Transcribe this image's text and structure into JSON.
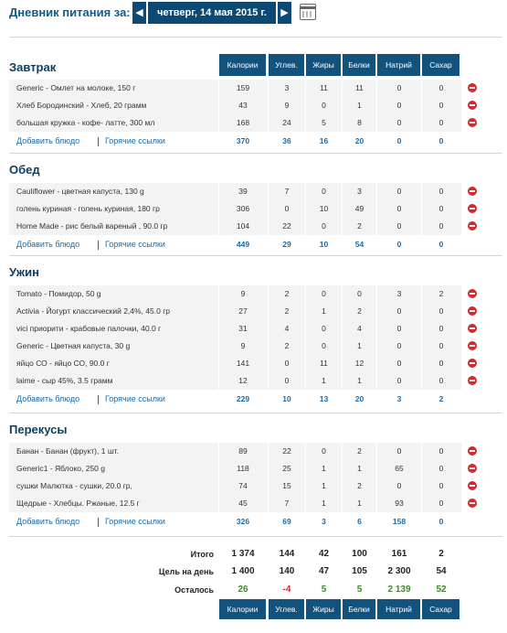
{
  "header": {
    "label": "Дневник питания за:",
    "date": "четверг, 14 мая 2015 г.",
    "prev_icon": "chevron-left-icon",
    "next_icon": "chevron-right-icon",
    "calendar_icon": "calendar-icon"
  },
  "columns": [
    "Калории",
    "Углев.",
    "Жиры",
    "Белки",
    "Натрий",
    "Сахар"
  ],
  "links": {
    "add": "Добавить блюдо",
    "hot": "Горячие ссылки"
  },
  "meals": [
    {
      "title": "Завтрак",
      "items": [
        {
          "name": "Generic - Омлет на молоке, 150 г",
          "values": [
            "159",
            "3",
            "11",
            "11",
            "0",
            "0"
          ]
        },
        {
          "name": "Хлеб Бородинский - Хлеб, 20 грамм",
          "values": [
            "43",
            "9",
            "0",
            "1",
            "0",
            "0"
          ]
        },
        {
          "name": "большая кружка - кофе- латте, 300 мл",
          "values": [
            "168",
            "24",
            "5",
            "8",
            "0",
            "0"
          ]
        }
      ],
      "totals": [
        "370",
        "36",
        "16",
        "20",
        "0",
        "0"
      ]
    },
    {
      "title": "Обед",
      "items": [
        {
          "name": "Cauliflower - цветная капуста, 130 g",
          "values": [
            "39",
            "7",
            "0",
            "3",
            "0",
            "0"
          ]
        },
        {
          "name": "голень куриная - голень куриная, 180 гр",
          "values": [
            "306",
            "0",
            "10",
            "49",
            "0",
            "0"
          ]
        },
        {
          "name": "Home Made - рис белый вареный , 90.0 гр",
          "values": [
            "104",
            "22",
            "0",
            "2",
            "0",
            "0"
          ]
        }
      ],
      "totals": [
        "449",
        "29",
        "10",
        "54",
        "0",
        "0"
      ]
    },
    {
      "title": "Ужин",
      "items": [
        {
          "name": "Tomato - Помидор, 50 g",
          "values": [
            "9",
            "2",
            "0",
            "0",
            "3",
            "2"
          ]
        },
        {
          "name": "Activia - Йогурт классический 2,4%, 45.0 гр",
          "values": [
            "27",
            "2",
            "1",
            "2",
            "0",
            "0"
          ]
        },
        {
          "name": "vici приорити - крабовые палочки, 40.0 г",
          "values": [
            "31",
            "4",
            "0",
            "4",
            "0",
            "0"
          ]
        },
        {
          "name": "Generic - Цветная капуста, 30 g",
          "values": [
            "9",
            "2",
            "0",
            "1",
            "0",
            "0"
          ]
        },
        {
          "name": "яйцо СО - яйцо СО, 90.0 г",
          "values": [
            "141",
            "0",
            "11",
            "12",
            "0",
            "0"
          ]
        },
        {
          "name": "laime - сыр 45%, 3.5 грамм",
          "values": [
            "12",
            "0",
            "1",
            "1",
            "0",
            "0"
          ]
        }
      ],
      "totals": [
        "229",
        "10",
        "13",
        "20",
        "3",
        "2"
      ]
    },
    {
      "title": "Перекусы",
      "items": [
        {
          "name": "Банан - Банан (фрукт), 1 шт.",
          "values": [
            "89",
            "22",
            "0",
            "2",
            "0",
            "0"
          ]
        },
        {
          "name": "Generic1 - Яблоко, 250 g",
          "values": [
            "118",
            "25",
            "1",
            "1",
            "65",
            "0"
          ]
        },
        {
          "name": "сушки Малютка - сушки, 20.0 гр,",
          "values": [
            "74",
            "15",
            "1",
            "2",
            "0",
            "0"
          ]
        },
        {
          "name": "Щедрые - Хлебцы. Ржаные, 12.5 г",
          "values": [
            "45",
            "7",
            "1",
            "1",
            "93",
            "0"
          ]
        }
      ],
      "totals": [
        "326",
        "69",
        "3",
        "6",
        "158",
        "0"
      ]
    }
  ],
  "summary": {
    "total_label": "Итого",
    "total": [
      "1 374",
      "144",
      "42",
      "100",
      "161",
      "2"
    ],
    "goal_label": "Цель на день",
    "goal": [
      "1 400",
      "140",
      "47",
      "105",
      "2 300",
      "54"
    ],
    "left_label": "Осталось",
    "left": [
      "26",
      "-4",
      "5",
      "5",
      "2 139",
      "52"
    ]
  },
  "colors": {
    "header_bg": "#14527e",
    "link": "#1a6aa8",
    "remaining_positive": "#3a8a2c",
    "remaining_negative": "#d42a2a",
    "delete": "#d42a2a"
  },
  "delete_icon": "remove-circle-icon"
}
